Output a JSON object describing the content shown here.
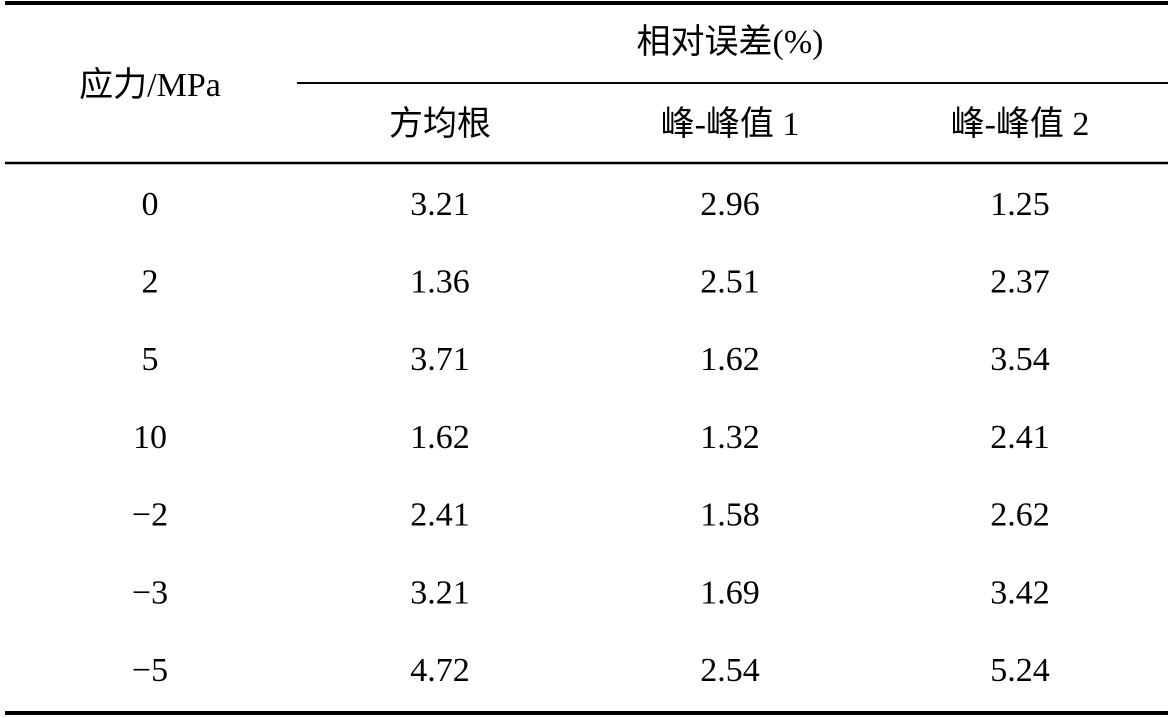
{
  "table": {
    "row_header": "应力/MPa",
    "group_header": "相对误差(%)",
    "columns": [
      "方均根",
      "峰-峰值 1",
      "峰-峰值 2"
    ],
    "rows": [
      [
        "0",
        "3.21",
        "2.96",
        "1.25"
      ],
      [
        "2",
        "1.36",
        "2.51",
        "2.37"
      ],
      [
        "5",
        "3.71",
        "1.62",
        "3.54"
      ],
      [
        "10",
        "1.62",
        "1.32",
        "2.41"
      ],
      [
        "−2",
        "2.41",
        "1.58",
        "2.62"
      ],
      [
        "−3",
        "3.21",
        "1.69",
        "3.42"
      ],
      [
        "−5",
        "4.72",
        "2.54",
        "5.24"
      ]
    ]
  }
}
